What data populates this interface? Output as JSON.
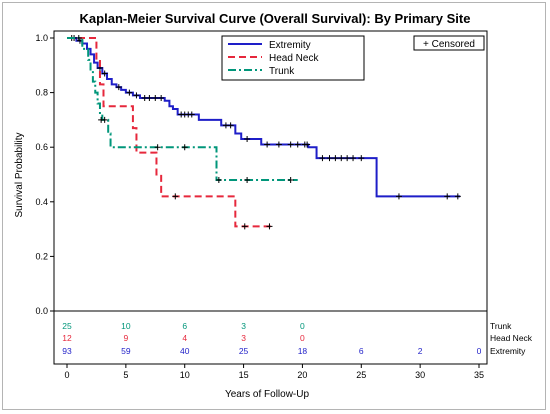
{
  "chart_data": {
    "type": "line",
    "title": "Kaplan-Meier Survival Curve (Overall Survival): By Primary Site",
    "xlabel": "Years of Follow-Up",
    "ylabel": "Survival Probability",
    "xlim": [
      0,
      35
    ],
    "ylim": [
      0,
      1.0
    ],
    "xticks": [
      "0",
      "5",
      "10",
      "15",
      "20",
      "25",
      "30",
      "35"
    ],
    "yticks": [
      "0.0",
      "0.2",
      "0.4",
      "0.6",
      "0.8",
      "1.0"
    ],
    "grid": false,
    "legend_position": "top",
    "censored_label": "+ Censored",
    "series": [
      {
        "name": "Extremity",
        "color": "#1e1ec8",
        "dash": "solid",
        "steps": [
          [
            0,
            1.0
          ],
          [
            0.8,
            0.99
          ],
          [
            1.3,
            0.98
          ],
          [
            1.7,
            0.96
          ],
          [
            2.0,
            0.94
          ],
          [
            2.3,
            0.91
          ],
          [
            2.6,
            0.89
          ],
          [
            3.0,
            0.87
          ],
          [
            3.4,
            0.85
          ],
          [
            3.8,
            0.83
          ],
          [
            4.2,
            0.82
          ],
          [
            4.6,
            0.81
          ],
          [
            5.0,
            0.8
          ],
          [
            5.6,
            0.79
          ],
          [
            6.2,
            0.78
          ],
          [
            8.3,
            0.77
          ],
          [
            8.7,
            0.75
          ],
          [
            9.0,
            0.74
          ],
          [
            9.4,
            0.72
          ],
          [
            11.2,
            0.7
          ],
          [
            13.1,
            0.68
          ],
          [
            14.3,
            0.65
          ],
          [
            14.8,
            0.63
          ],
          [
            16.5,
            0.61
          ],
          [
            20.5,
            0.6
          ],
          [
            21.2,
            0.56
          ],
          [
            26.3,
            0.42
          ],
          [
            33.4,
            0.42
          ]
        ],
        "censored": [
          [
            0.4,
            1.0
          ],
          [
            0.6,
            1.0
          ],
          [
            1.1,
            0.99
          ],
          [
            2.8,
            0.89
          ],
          [
            3.2,
            0.87
          ],
          [
            4.4,
            0.82
          ],
          [
            5.3,
            0.8
          ],
          [
            5.9,
            0.79
          ],
          [
            6.6,
            0.78
          ],
          [
            7.0,
            0.78
          ],
          [
            7.5,
            0.78
          ],
          [
            8.0,
            0.78
          ],
          [
            9.7,
            0.72
          ],
          [
            10.0,
            0.72
          ],
          [
            10.3,
            0.72
          ],
          [
            10.6,
            0.72
          ],
          [
            13.5,
            0.68
          ],
          [
            13.9,
            0.68
          ],
          [
            15.3,
            0.63
          ],
          [
            17.0,
            0.61
          ],
          [
            18.0,
            0.61
          ],
          [
            19.0,
            0.61
          ],
          [
            19.6,
            0.61
          ],
          [
            20.2,
            0.61
          ],
          [
            20.4,
            0.61
          ],
          [
            21.7,
            0.56
          ],
          [
            22.3,
            0.56
          ],
          [
            22.8,
            0.56
          ],
          [
            23.3,
            0.56
          ],
          [
            23.8,
            0.56
          ],
          [
            24.3,
            0.56
          ],
          [
            25.0,
            0.56
          ],
          [
            28.2,
            0.42
          ],
          [
            32.3,
            0.42
          ],
          [
            33.2,
            0.42
          ]
        ],
        "at_risk": [
          93,
          59,
          40,
          25,
          18,
          6,
          2,
          0
        ]
      },
      {
        "name": "Head Neck",
        "color": "#e6283c",
        "dash": "dashed",
        "steps": [
          [
            0,
            1.0
          ],
          [
            2.5,
            0.92
          ],
          [
            2.8,
            0.83
          ],
          [
            3.1,
            0.75
          ],
          [
            5.6,
            0.67
          ],
          [
            5.9,
            0.58
          ],
          [
            7.6,
            0.5
          ],
          [
            8.0,
            0.42
          ],
          [
            14.3,
            0.31
          ],
          [
            17.5,
            0.31
          ]
        ],
        "censored": [
          [
            9.2,
            0.42
          ],
          [
            15.1,
            0.31
          ],
          [
            17.2,
            0.31
          ]
        ],
        "at_risk": [
          12,
          9,
          4,
          3,
          0
        ]
      },
      {
        "name": "Trunk",
        "color": "#00967a",
        "dash": "dashdot",
        "steps": [
          [
            0,
            1.0
          ],
          [
            1.3,
            0.96
          ],
          [
            1.8,
            0.92
          ],
          [
            2.0,
            0.88
          ],
          [
            2.2,
            0.84
          ],
          [
            2.4,
            0.8
          ],
          [
            2.6,
            0.76
          ],
          [
            2.8,
            0.72
          ],
          [
            3.0,
            0.7
          ],
          [
            3.5,
            0.65
          ],
          [
            3.7,
            0.6
          ],
          [
            12.7,
            0.48
          ],
          [
            19.6,
            0.48
          ]
        ],
        "censored": [
          [
            1.0,
            1.0
          ],
          [
            2.9,
            0.7
          ],
          [
            3.2,
            0.7
          ],
          [
            7.7,
            0.6
          ],
          [
            10.0,
            0.6
          ],
          [
            12.9,
            0.48
          ],
          [
            15.3,
            0.48
          ],
          [
            19.0,
            0.48
          ]
        ],
        "at_risk": [
          25,
          10,
          6,
          3,
          0
        ]
      }
    ],
    "at_risk_times": [
      0,
      5,
      10,
      15,
      20,
      25,
      30,
      35
    ],
    "at_risk_rows": [
      {
        "series": "Trunk",
        "label": "Trunk",
        "values": [
          "25",
          "10",
          "6",
          "3",
          "0"
        ]
      },
      {
        "series": "Head Neck",
        "label": "Head Neck",
        "values": [
          "12",
          "9",
          "4",
          "3",
          "0"
        ]
      },
      {
        "series": "Extremity",
        "label": "Extremity",
        "values": [
          "93",
          "59",
          "40",
          "25",
          "18",
          "6",
          "2",
          "0"
        ]
      }
    ]
  }
}
